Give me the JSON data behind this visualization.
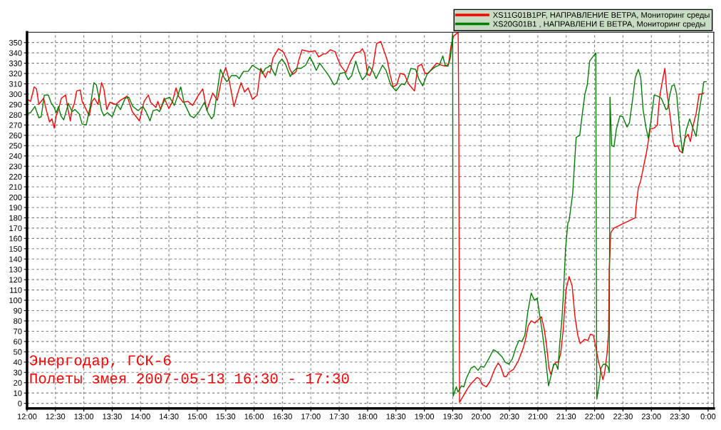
{
  "chart_data": {
    "type": "line",
    "xlim": [
      12,
      24.1
    ],
    "ylim": [
      -5,
      360
    ],
    "xticks": [
      {
        "value": 12,
        "label": "12:00"
      },
      {
        "value": 12.5,
        "label": "12:30"
      },
      {
        "value": 13,
        "label": "13:00"
      },
      {
        "value": 13.5,
        "label": "13:30"
      },
      {
        "value": 14,
        "label": "14:00"
      },
      {
        "value": 14.5,
        "label": "14:30"
      },
      {
        "value": 15,
        "label": "15:00"
      },
      {
        "value": 15.5,
        "label": "15:30"
      },
      {
        "value": 16,
        "label": "16:00"
      },
      {
        "value": 16.5,
        "label": "16:30"
      },
      {
        "value": 17,
        "label": "17:00"
      },
      {
        "value": 17.5,
        "label": "17:30"
      },
      {
        "value": 18,
        "label": "18:00"
      },
      {
        "value": 18.5,
        "label": "18:30"
      },
      {
        "value": 19,
        "label": "19:00"
      },
      {
        "value": 19.5,
        "label": "19:30"
      },
      {
        "value": 20,
        "label": "20:00"
      },
      {
        "value": 20.5,
        "label": "20:30"
      },
      {
        "value": 21,
        "label": "21:00"
      },
      {
        "value": 21.5,
        "label": "21:30"
      },
      {
        "value": 22,
        "label": "22:00"
      },
      {
        "value": 22.5,
        "label": "22:30"
      },
      {
        "value": 23,
        "label": "23:00"
      },
      {
        "value": 23.5,
        "label": "23:30"
      },
      {
        "value": 24,
        "label": "0:00"
      }
    ],
    "yticks": [
      0,
      10,
      20,
      30,
      40,
      50,
      60,
      70,
      80,
      90,
      100,
      110,
      120,
      130,
      140,
      150,
      160,
      170,
      180,
      190,
      200,
      210,
      220,
      230,
      240,
      250,
      260,
      270,
      280,
      290,
      300,
      310,
      320,
      330,
      340,
      350
    ],
    "grid": true,
    "legend": "top right",
    "marker": "none",
    "line_style": "solid",
    "annotations": [
      "Энергодар, ГСК-6",
      "Полеты змея 2007-05-13 16:30 - 17:30"
    ],
    "series": [
      {
        "name": "XS11G01B1PF, НАПРАВЛЕНИЕ ВЕТРА, Мониторинг среды",
        "color": "#ff0000",
        "x": [
          12.0,
          12.063,
          12.125,
          12.167,
          12.208,
          12.292,
          12.333,
          12.396,
          12.438,
          12.479,
          12.513,
          12.554,
          12.604,
          12.679,
          12.729,
          12.763,
          12.792,
          12.833,
          12.875,
          12.938,
          12.971,
          13.042,
          13.096,
          13.146,
          13.188,
          13.25,
          13.313,
          13.354,
          13.404,
          13.458,
          13.563,
          13.646,
          13.763,
          13.854,
          13.979,
          14.063,
          14.138,
          14.179,
          14.271,
          14.304,
          14.354,
          14.417,
          14.5,
          14.563,
          14.625,
          14.667,
          14.75,
          14.833,
          14.917,
          15.021,
          15.096,
          15.167,
          15.271,
          15.354,
          15.429,
          15.5,
          15.563,
          15.646,
          15.708,
          15.771,
          15.833,
          15.896,
          15.971,
          16.054,
          16.117,
          16.2,
          16.242,
          16.283,
          16.333,
          16.429,
          16.513,
          16.583,
          16.625,
          16.679,
          16.742,
          16.783,
          16.846,
          16.908,
          16.992,
          17.075,
          17.138,
          17.221,
          17.263,
          17.346,
          17.429,
          17.483,
          17.533,
          17.617,
          17.7,
          17.783,
          17.867,
          17.908,
          17.95,
          18.0,
          18.042,
          18.096,
          18.158,
          18.233,
          18.283,
          18.346,
          18.4,
          18.45,
          18.513,
          18.575,
          18.65,
          18.721,
          18.825,
          18.888,
          18.95,
          19.013,
          19.067,
          19.138,
          19.221,
          19.304,
          19.388,
          19.429,
          19.471,
          19.513,
          19.554,
          19.596,
          19.608,
          19.621,
          19.675,
          19.758,
          19.821,
          19.925,
          19.967,
          20.029,
          20.092,
          20.154,
          20.238,
          20.3,
          20.342,
          20.404,
          20.446,
          20.488,
          20.571,
          20.654,
          20.738,
          20.779,
          20.829,
          20.883,
          20.946,
          21.008,
          21.063,
          21.113,
          21.154,
          21.196,
          21.229,
          21.279,
          21.321,
          21.363,
          21.404,
          21.446,
          21.496,
          21.55,
          21.604,
          21.654,
          21.704,
          21.746,
          21.821,
          21.883,
          21.925,
          21.979,
          22.029,
          22.071,
          22.113,
          22.146,
          22.175,
          22.217,
          22.246,
          22.258,
          22.271,
          22.279,
          22.288,
          22.342,
          22.488,
          22.717,
          22.729,
          22.771,
          22.813,
          22.863,
          22.913,
          22.946,
          22.979,
          23.05,
          23.104,
          23.133,
          23.154,
          23.196,
          23.238,
          23.271,
          23.3,
          23.342,
          23.383,
          23.413,
          23.467,
          23.496,
          23.55,
          23.592,
          23.646,
          23.688,
          23.738,
          23.788,
          23.842,
          23.883,
          23.925
        ],
        "values": [
          295,
          293,
          307,
          305,
          290,
          296,
          286,
          273,
          276,
          267,
          279,
          285,
          296,
          299,
          283,
          274,
          285,
          291,
          303,
          304,
          293,
          285,
          279,
          293,
          296,
          290,
          311,
          305,
          285,
          292,
          290,
          294,
          298,
          283,
          274,
          293,
          299,
          292,
          287,
          293,
          285,
          296,
          286,
          293,
          306,
          298,
          292,
          293,
          289,
          299,
          305,
          284,
          301,
          294,
          315,
          326,
          313,
          288,
          300,
          311,
          302,
          306,
          295,
          299,
          325,
          316,
          322,
          321,
          335,
          344,
          341,
          333,
          325,
          319,
          322,
          332,
          343,
          342,
          341,
          342,
          336,
          339,
          339,
          343,
          341,
          333,
          327,
          321,
          332,
          340,
          341,
          344,
          339,
          319,
          318,
          327,
          349,
          351,
          343,
          333,
          318,
          307,
          309,
          320,
          319,
          310,
          303,
          327,
          329,
          320,
          320,
          325,
          330,
          328,
          327,
          330,
          347,
          356,
          358,
          360,
          270,
          1,
          6,
          14,
          19,
          25,
          24,
          18,
          16,
          21,
          33,
          39,
          36,
          26,
          26,
          30,
          33,
          41,
          53,
          61,
          75,
          80,
          78,
          81,
          84,
          72,
          56,
          34,
          28,
          37,
          40,
          40,
          49,
          71,
          110,
          123,
          114,
          84,
          66,
          58,
          62,
          61,
          67,
          66,
          52,
          40,
          31,
          23,
          29,
          47,
          68,
          130,
          146,
          159,
          166,
          170,
          174,
          180,
          190,
          209,
          216,
          230,
          243,
          254,
          266,
          267,
          270,
          290,
          300,
          313,
          325,
          303,
          292,
          274,
          254,
          249,
          250,
          245,
          243,
          257,
          261,
          254,
          270,
          281,
          300,
          300,
          301
        ]
      },
      {
        "name": "XS20G01B1 , НАПРАВЛЕНИ Е ВЕТРА, Мониторинг среды",
        "color": "#008000",
        "x": [
          12.0,
          12.063,
          12.138,
          12.208,
          12.25,
          12.304,
          12.375,
          12.429,
          12.479,
          12.513,
          12.554,
          12.596,
          12.646,
          12.729,
          12.792,
          12.846,
          12.917,
          12.971,
          13.042,
          13.113,
          13.179,
          13.221,
          13.313,
          13.354,
          13.417,
          13.5,
          13.583,
          13.646,
          13.729,
          13.792,
          13.863,
          13.958,
          14.042,
          14.096,
          14.167,
          14.221,
          14.292,
          14.333,
          14.429,
          14.513,
          14.596,
          14.708,
          14.771,
          14.833,
          14.875,
          14.938,
          15.021,
          15.125,
          15.188,
          15.25,
          15.292,
          15.346,
          15.408,
          15.471,
          15.521,
          15.604,
          15.688,
          15.738,
          15.813,
          15.896,
          15.971,
          16.054,
          16.117,
          16.15,
          16.2,
          16.242,
          16.283,
          16.317,
          16.375,
          16.429,
          16.492,
          16.554,
          16.638,
          16.692,
          16.75,
          16.825,
          16.908,
          16.983,
          17.033,
          17.096,
          17.158,
          17.208,
          17.263,
          17.325,
          17.408,
          17.458,
          17.513,
          17.596,
          17.658,
          17.721,
          17.792,
          17.846,
          17.908,
          17.971,
          18.025,
          18.096,
          18.15,
          18.263,
          18.325,
          18.408,
          18.5,
          18.596,
          18.65,
          18.7,
          18.763,
          18.846,
          18.908,
          18.971,
          19.054,
          19.117,
          19.179,
          19.263,
          19.325,
          19.367,
          19.417,
          19.458,
          19.483,
          19.5,
          19.504,
          19.508,
          19.563,
          19.592,
          19.654,
          19.696,
          19.738,
          19.821,
          19.883,
          19.946,
          19.996,
          20.05,
          20.133,
          20.217,
          20.279,
          20.371,
          20.425,
          20.488,
          20.55,
          20.613,
          20.667,
          20.717,
          20.771,
          20.821,
          20.883,
          20.938,
          20.988,
          21.029,
          21.079,
          21.133,
          21.188,
          21.238,
          21.279,
          21.321,
          21.354,
          21.383,
          21.425,
          21.454,
          21.488,
          21.529,
          21.55,
          21.613,
          21.675,
          21.738,
          21.779,
          21.829,
          21.871,
          21.913,
          21.967,
          22.021,
          22.038,
          22.079,
          22.113,
          22.154,
          22.196,
          22.238,
          22.258,
          22.271,
          22.3,
          22.342,
          22.383,
          22.446,
          22.496,
          22.571,
          22.613,
          22.663,
          22.717,
          22.771,
          22.813,
          22.854,
          22.904,
          22.946,
          22.988,
          23.05,
          23.113,
          23.175,
          23.258,
          23.288,
          23.321,
          23.363,
          23.404,
          23.446,
          23.496,
          23.55,
          23.613,
          23.675,
          23.738,
          23.788,
          23.842,
          23.904,
          23.925,
          23.967
        ],
        "values": [
          281,
          282,
          288,
          277,
          278,
          299,
          299,
          291,
          287,
          282,
          288,
          279,
          275,
          291,
          283,
          285,
          281,
          271,
          270,
          288,
          311,
          309,
          284,
          279,
          282,
          278,
          290,
          285,
          296,
          297,
          288,
          284,
          288,
          283,
          274,
          284,
          285,
          283,
          295,
          297,
          289,
          307,
          291,
          284,
          279,
          277,
          282,
          292,
          282,
          276,
          279,
          301,
          324,
          316,
          312,
          318,
          318,
          315,
          322,
          322,
          328,
          325,
          323,
          320,
          325,
          326,
          328,
          324,
          318,
          330,
          334,
          329,
          317,
          322,
          325,
          325,
          328,
          336,
          331,
          323,
          330,
          326,
          322,
          317,
          309,
          311,
          320,
          321,
          314,
          318,
          332,
          322,
          314,
          318,
          327,
          322,
          315,
          328,
          323,
          309,
          303,
          310,
          309,
          314,
          325,
          324,
          314,
          308,
          320,
          323,
          326,
          328,
          337,
          328,
          327,
          335,
          347,
          360,
          95,
          7,
          16,
          11,
          17,
          16,
          24,
          34,
          36,
          32,
          36,
          35,
          43,
          52,
          50,
          45,
          40,
          38,
          43,
          54,
          61,
          60,
          66,
          88,
          107,
          100,
          102,
          87,
          69,
          45,
          17,
          28,
          38,
          38,
          33,
          56,
          82,
          110,
          150,
          175,
          177,
          203,
          258,
          260,
          279,
          300,
          309,
          332,
          336,
          340,
          4,
          18,
          34,
          38,
          38,
          35,
          30,
          297,
          250,
          249,
          266,
          279,
          278,
          268,
          272,
          292,
          316,
          324,
          316,
          285,
          268,
          257,
          272,
          299,
          298,
          296,
          285,
          286,
          298,
          308,
          309,
          300,
          268,
          243,
          265,
          276,
          266,
          259,
          283,
          304,
          312,
          312
        ]
      }
    ]
  }
}
